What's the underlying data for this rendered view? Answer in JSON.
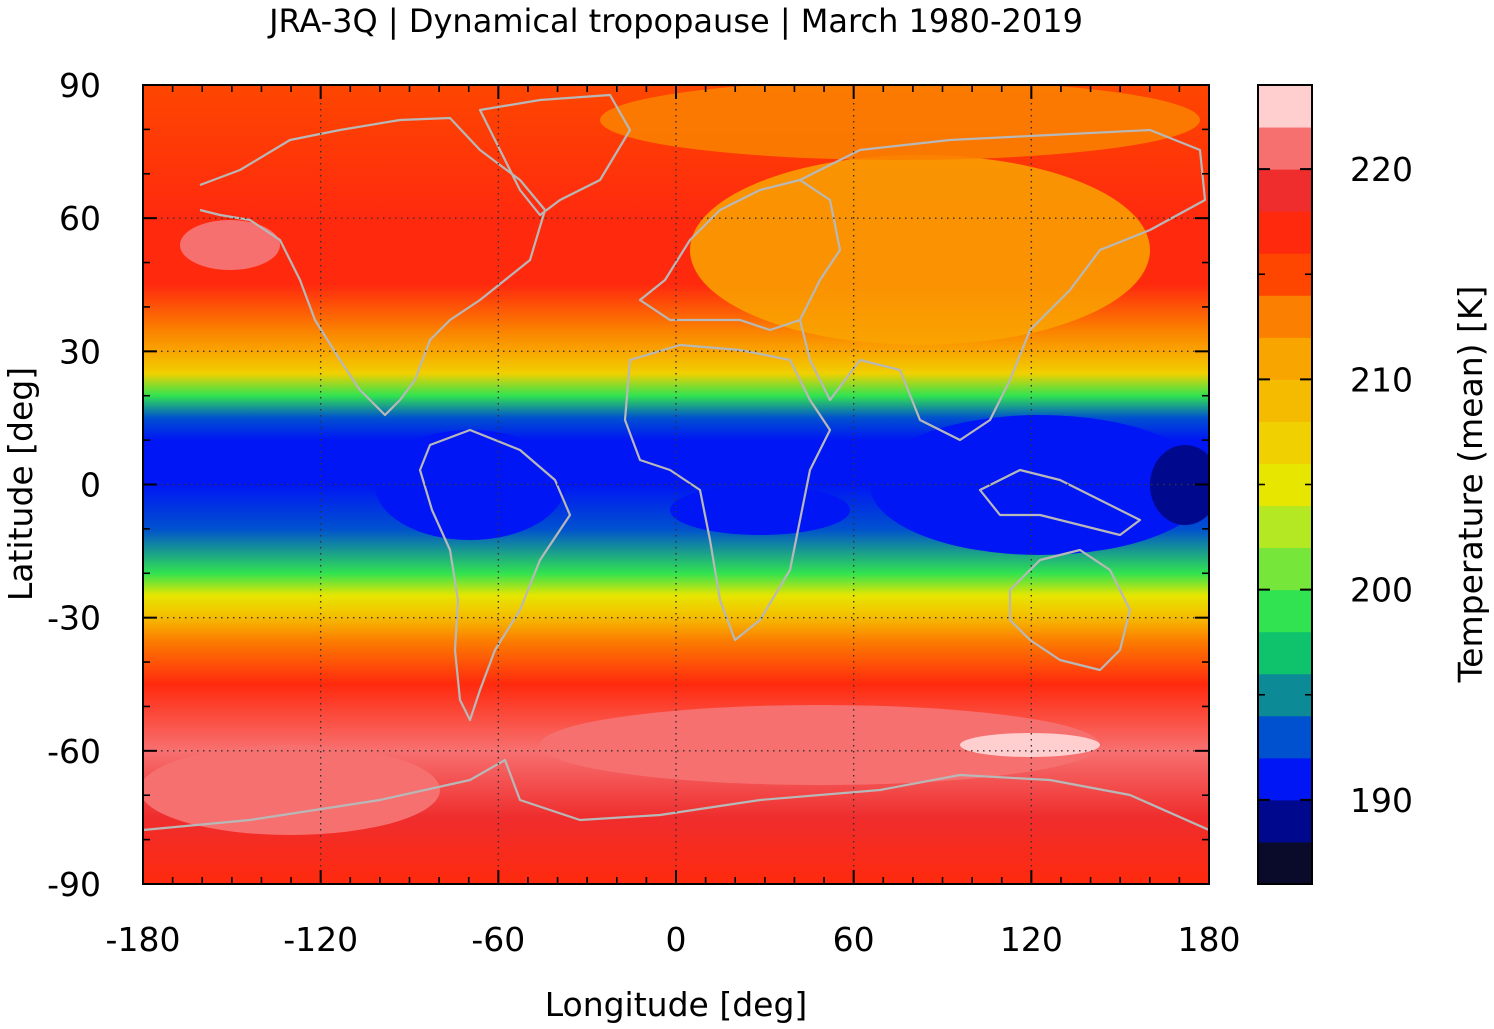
{
  "title": "JRA-3Q | Dynamical tropopause | March 1980-2019",
  "x_axis": {
    "label": "Longitude [deg]",
    "ticks": [
      "-180",
      "-120",
      "-60",
      "0",
      "60",
      "120",
      "180"
    ],
    "range": [
      -180,
      180
    ]
  },
  "y_axis": {
    "label": "Latitude [deg]",
    "ticks": [
      "90",
      "60",
      "30",
      "0",
      "-30",
      "-60",
      "-90"
    ],
    "range": [
      -90,
      90
    ]
  },
  "colorbar": {
    "label": "Temperature (mean) [K]",
    "ticks": [
      "190",
      "200",
      "210",
      "220"
    ],
    "range": [
      186,
      224
    ],
    "colors": [
      "#0a0a2a",
      "#00088e",
      "#0016f5",
      "#0051cf",
      "#0c8b96",
      "#0fc36c",
      "#31e350",
      "#76e63a",
      "#b4e822",
      "#e6e600",
      "#f0d000",
      "#f5bb00",
      "#f9a500",
      "#fb7f00",
      "#fe4600",
      "#ff2a0e",
      "#ef2d2d",
      "#f77070",
      "#ffcfcf"
    ]
  },
  "chart_data": {
    "type": "heatmap",
    "title": "JRA-3Q | Dynamical tropopause | March 1980-2019",
    "xlabel": "Longitude [deg]",
    "ylabel": "Latitude [deg]",
    "zlabel": "Temperature (mean) [K]",
    "xlim": [
      -180,
      180
    ],
    "ylim": [
      -90,
      90
    ],
    "zlim": [
      186,
      224
    ],
    "grid": true,
    "zonal_profile_K": {
      "lat": [
        90,
        60,
        45,
        35,
        30,
        25,
        20,
        15,
        10,
        0,
        -10,
        -20,
        -25,
        -30,
        -35,
        -45,
        -60,
        -75,
        -90
      ],
      "value": [
        215,
        217,
        216,
        212,
        210,
        206,
        199,
        193,
        191,
        191,
        192,
        199,
        205,
        209,
        213,
        216,
        220,
        218,
        217
      ]
    }
  }
}
